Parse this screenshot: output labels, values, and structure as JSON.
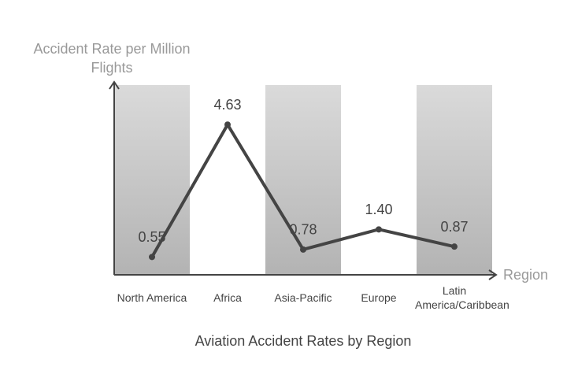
{
  "chart_data": {
    "type": "line",
    "title": "Aviation Accident Rates by Region",
    "x_label": "Region",
    "y_label": "Accident Rate per Million Flights",
    "categories": [
      "North America",
      "Africa",
      "Asia-Pacific",
      "Europe",
      "Latin America/Caribbean"
    ],
    "values": [
      0.55,
      4.63,
      0.78,
      1.4,
      0.87
    ],
    "value_labels": [
      "0.55",
      "4.63",
      "0.78",
      "1.40",
      "0.87"
    ],
    "color": "#444444",
    "ylim": [
      0,
      5.85
    ]
  }
}
